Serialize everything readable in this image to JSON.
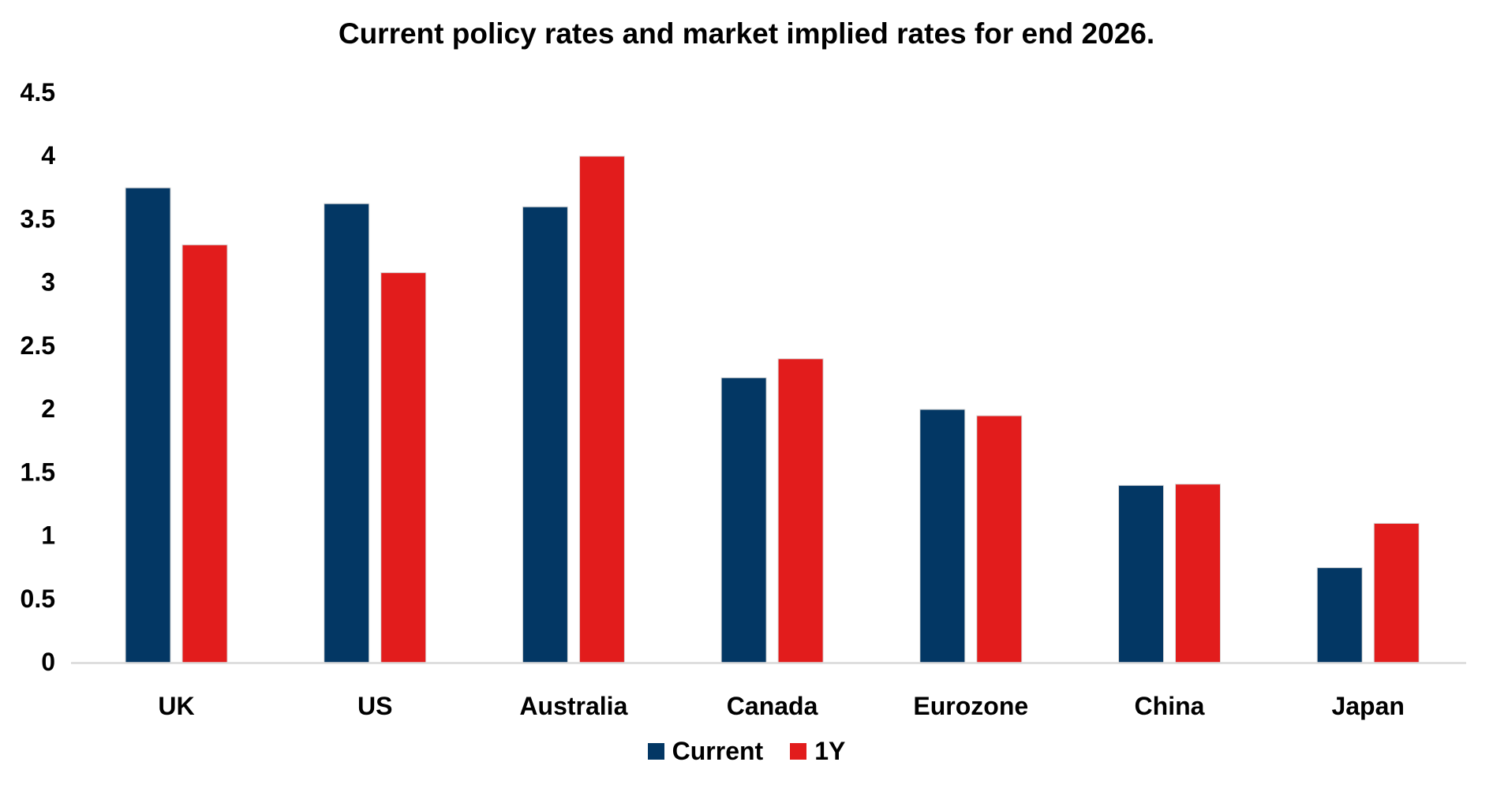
{
  "page": {
    "background": "#FFFFFF"
  },
  "chart_data": {
    "type": "bar",
    "title": "Current policy rates and market implied rates for end 2026.",
    "categories": [
      "UK",
      "US",
      "Australia",
      "Canada",
      "Eurozone",
      "China",
      "Japan"
    ],
    "series": [
      {
        "name": "Current",
        "color": "#033764",
        "values": [
          3.75,
          3.625,
          3.6,
          2.25,
          2.0,
          1.4,
          0.75
        ]
      },
      {
        "name": "1Y",
        "color": "#E21C1C",
        "values": [
          3.3,
          3.08,
          4.0,
          2.4,
          1.95,
          1.41,
          1.1
        ]
      }
    ],
    "xlabel": "",
    "ylabel": "",
    "ylim": [
      0,
      4.5
    ],
    "yticks": [
      0,
      0.5,
      1,
      1.5,
      2,
      2.5,
      3,
      3.5,
      4,
      4.5
    ],
    "ytick_labels": [
      "0",
      "0.5",
      "1",
      "1.5",
      "2",
      "2.5",
      "3",
      "3.5",
      "4",
      "4.5"
    ],
    "grid": false,
    "legend_position": "bottom",
    "axis_line_color": "#D9D9D9",
    "text_color": "#000000"
  }
}
